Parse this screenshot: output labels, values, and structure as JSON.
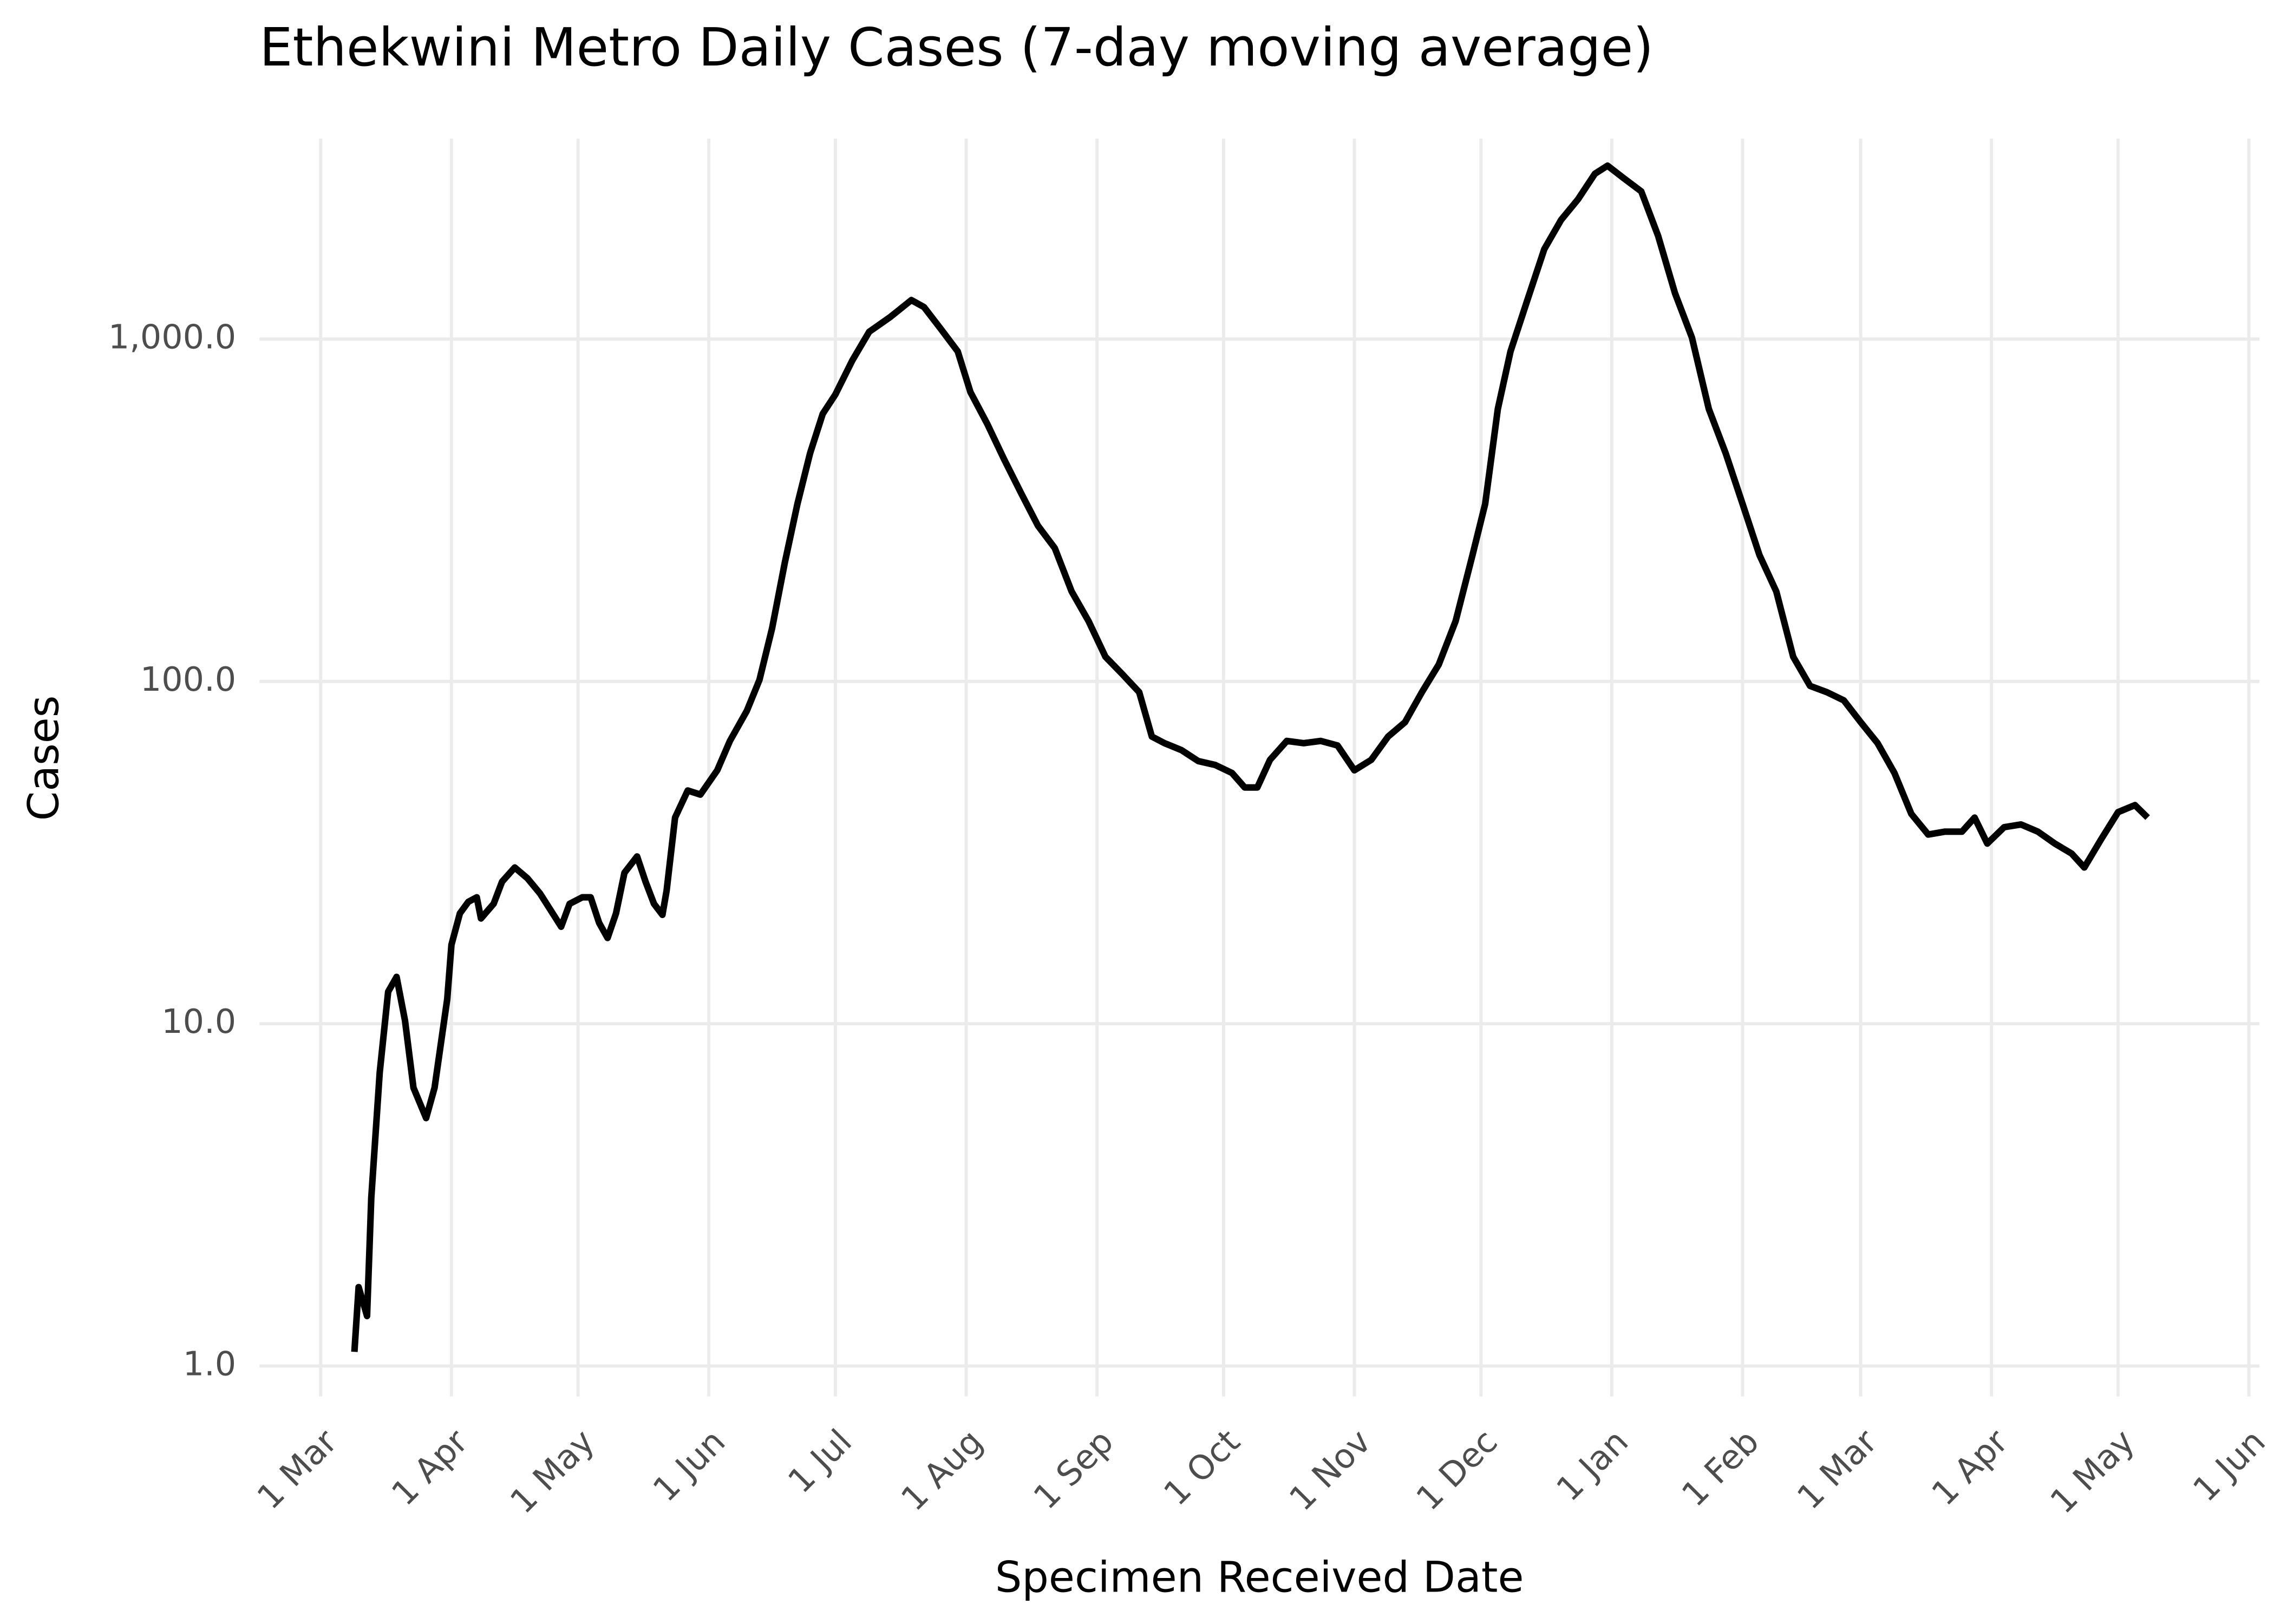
{
  "chart_data": {
    "type": "line",
    "title": "Ethekwini Metro Daily Cases (7-day moving average)",
    "x_label": "Specimen Received Date",
    "y_label": "Cases",
    "y_scale": "log",
    "grid": true,
    "color": "#000000",
    "x": [
      8,
      9,
      11,
      12,
      14,
      16,
      18,
      20,
      22,
      25,
      27,
      30,
      31,
      33,
      35,
      37,
      38,
      41,
      43,
      46,
      49,
      52,
      55,
      57,
      59,
      62,
      64,
      66,
      68,
      70,
      72,
      75,
      77,
      79,
      81,
      82,
      84,
      87,
      90,
      94,
      97,
      101,
      104,
      107,
      110,
      113,
      116,
      119,
      122,
      126,
      130,
      135,
      140,
      143,
      147,
      151,
      154,
      158,
      162,
      166,
      170,
      174,
      178,
      182,
      186,
      190,
      194,
      197,
      200,
      204,
      208,
      212,
      216,
      219,
      222,
      225,
      229,
      233,
      237,
      241,
      245,
      249,
      253,
      257,
      261,
      265,
      269,
      273,
      276,
      279,
      282,
      286,
      290,
      294,
      298,
      302,
      305,
      309,
      313,
      317,
      321,
      325,
      329,
      333,
      337,
      341,
      345,
      349,
      353,
      357,
      361,
      365,
      369,
      373,
      377,
      381,
      385,
      389,
      392,
      395,
      399,
      403,
      407,
      411,
      415,
      418,
      422,
      426,
      430,
      433
    ],
    "values": [
      1.1,
      1.7,
      1.4,
      3.1,
      7.2,
      12.4,
      13.7,
      10.2,
      6.5,
      5.3,
      6.5,
      11.8,
      17,
      21,
      22.7,
      23.4,
      20.3,
      22.4,
      26,
      28.6,
      26.6,
      24,
      21,
      19.2,
      22.4,
      23.4,
      23.4,
      19.7,
      17.8,
      21,
      27.6,
      30.8,
      26,
      22.4,
      20.8,
      24.5,
      40,
      48,
      46.7,
      55,
      67,
      82,
      101,
      143,
      222,
      330,
      464,
      605,
      689,
      866,
      1050,
      1160,
      1300,
      1240,
      1070,
      920,
      700,
      565,
      445,
      355,
      285,
      245,
      183,
      150,
      118,
      105,
      93,
      69,
      66,
      63,
      58.5,
      57,
      54,
      49,
      49,
      59,
      67,
      66,
      67,
      65,
      55,
      59,
      69,
      76,
      93,
      112,
      150,
      234,
      330,
      625,
      920,
      1300,
      1830,
      2230,
      2560,
      3040,
      3210,
      2940,
      2700,
      2000,
      1360,
      1010,
      625,
      464,
      330,
      234,
      183,
      118,
      97,
      93,
      88,
      76,
      66,
      54,
      41,
      35.7,
      36.4,
      36.4,
      40,
      33.6,
      37.5,
      38.2,
      36.4,
      33.6,
      31.4,
      28.6,
      34.6,
      41.5,
      43.5,
      40
    ],
    "xlim": [
      -14.5,
      459.5
    ],
    "xticks": [
      {
        "value": 0,
        "label": "1 Mar"
      },
      {
        "value": 31,
        "label": "1 Apr"
      },
      {
        "value": 61,
        "label": "1 May"
      },
      {
        "value": 92,
        "label": "1 Jun"
      },
      {
        "value": 122,
        "label": "1 Jul"
      },
      {
        "value": 153,
        "label": "1 Aug"
      },
      {
        "value": 184,
        "label": "1 Sep"
      },
      {
        "value": 214,
        "label": "1 Oct"
      },
      {
        "value": 245,
        "label": "1 Nov"
      },
      {
        "value": 275,
        "label": "1 Dec"
      },
      {
        "value": 306,
        "label": "1 Jan"
      },
      {
        "value": 337,
        "label": "1 Feb"
      },
      {
        "value": 365,
        "label": "1 Mar"
      },
      {
        "value": 396,
        "label": "1 Apr"
      },
      {
        "value": 426,
        "label": "1 May"
      },
      {
        "value": 457,
        "label": "1 Jun"
      }
    ],
    "ylim": [
      0.815,
      3850
    ],
    "yticks": [
      {
        "value": 1,
        "label": "1.0"
      },
      {
        "value": 10,
        "label": "10.0"
      },
      {
        "value": 100,
        "label": "100.0"
      },
      {
        "value": 1000,
        "label": "1,000.0"
      }
    ]
  }
}
